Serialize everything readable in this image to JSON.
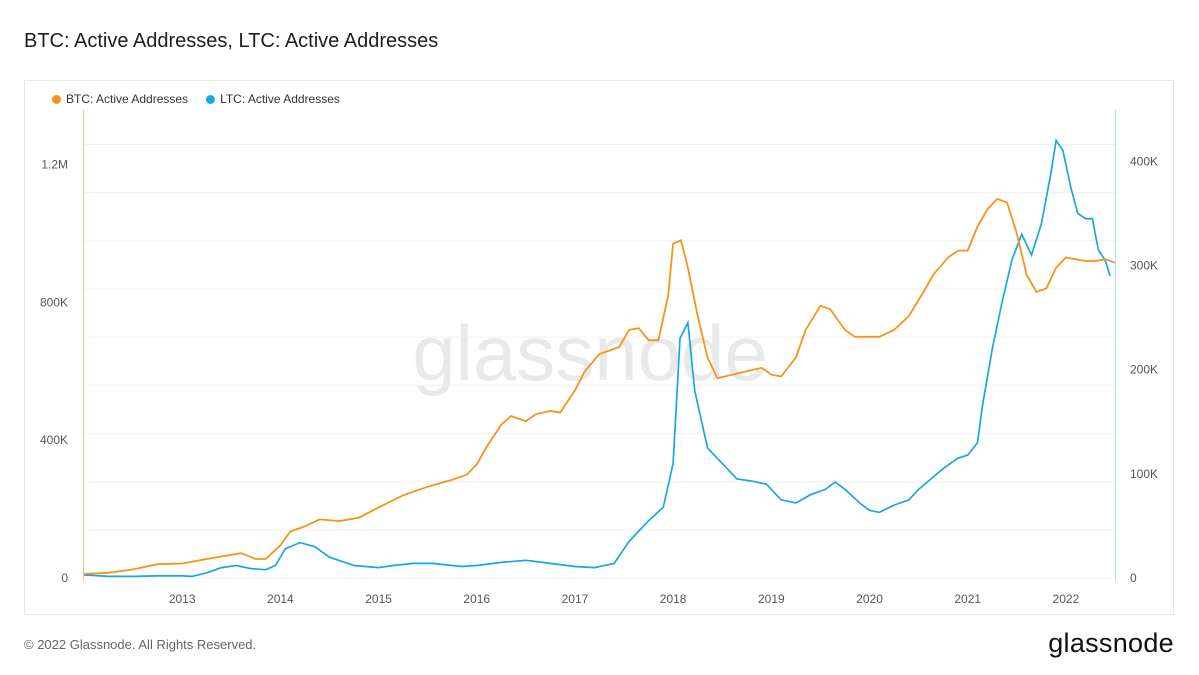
{
  "title": "BTC: Active Addresses, LTC: Active Addresses",
  "footer": "© 2022 Glassnode. All Rights Reserved.",
  "brand": "glassnode",
  "watermark": "glassnode",
  "chart_data": {
    "type": "line",
    "x_axis": {
      "ticks": [
        "2013",
        "2014",
        "2015",
        "2016",
        "2017",
        "2018",
        "2019",
        "2020",
        "2021",
        "2022"
      ],
      "range": [
        2012.0,
        2022.5
      ]
    },
    "y_left": {
      "ticks": [
        "0",
        "400K",
        "800K",
        "1.2M"
      ],
      "tick_values": [
        0,
        400000,
        800000,
        1200000
      ],
      "range": [
        0,
        1200000
      ]
    },
    "y_right": {
      "ticks": [
        "0",
        "100K",
        "200K",
        "300K",
        "400K"
      ],
      "tick_values": [
        0,
        100000,
        200000,
        300000,
        400000
      ],
      "range": [
        0,
        400000
      ]
    },
    "grid": true,
    "legend_position": "top-left",
    "series": [
      {
        "name": "BTC: Active Addresses",
        "color": "#f7931a",
        "axis": "left",
        "points": [
          [
            2012.0,
            12000
          ],
          [
            2012.25,
            15000
          ],
          [
            2012.5,
            25000
          ],
          [
            2012.75,
            40000
          ],
          [
            2013.0,
            42000
          ],
          [
            2013.25,
            55000
          ],
          [
            2013.45,
            65000
          ],
          [
            2013.6,
            72000
          ],
          [
            2013.75,
            55000
          ],
          [
            2013.85,
            55000
          ],
          [
            2014.0,
            95000
          ],
          [
            2014.1,
            135000
          ],
          [
            2014.25,
            150000
          ],
          [
            2014.4,
            170000
          ],
          [
            2014.6,
            165000
          ],
          [
            2014.8,
            175000
          ],
          [
            2015.0,
            205000
          ],
          [
            2015.25,
            240000
          ],
          [
            2015.5,
            265000
          ],
          [
            2015.75,
            285000
          ],
          [
            2015.9,
            300000
          ],
          [
            2016.0,
            330000
          ],
          [
            2016.1,
            380000
          ],
          [
            2016.25,
            445000
          ],
          [
            2016.35,
            470000
          ],
          [
            2016.5,
            455000
          ],
          [
            2016.6,
            475000
          ],
          [
            2016.75,
            485000
          ],
          [
            2016.85,
            480000
          ],
          [
            2017.0,
            545000
          ],
          [
            2017.1,
            600000
          ],
          [
            2017.25,
            650000
          ],
          [
            2017.45,
            670000
          ],
          [
            2017.55,
            720000
          ],
          [
            2017.65,
            725000
          ],
          [
            2017.75,
            690000
          ],
          [
            2017.85,
            690000
          ],
          [
            2017.95,
            820000
          ],
          [
            2018.0,
            970000
          ],
          [
            2018.08,
            980000
          ],
          [
            2018.15,
            900000
          ],
          [
            2018.25,
            760000
          ],
          [
            2018.35,
            640000
          ],
          [
            2018.45,
            580000
          ],
          [
            2018.6,
            590000
          ],
          [
            2018.75,
            600000
          ],
          [
            2018.9,
            610000
          ],
          [
            2019.0,
            590000
          ],
          [
            2019.1,
            585000
          ],
          [
            2019.25,
            640000
          ],
          [
            2019.35,
            720000
          ],
          [
            2019.5,
            790000
          ],
          [
            2019.6,
            780000
          ],
          [
            2019.75,
            720000
          ],
          [
            2019.85,
            700000
          ],
          [
            2020.0,
            700000
          ],
          [
            2020.1,
            700000
          ],
          [
            2020.25,
            720000
          ],
          [
            2020.4,
            760000
          ],
          [
            2020.55,
            830000
          ],
          [
            2020.65,
            880000
          ],
          [
            2020.8,
            930000
          ],
          [
            2020.9,
            950000
          ],
          [
            2021.0,
            950000
          ],
          [
            2021.1,
            1020000
          ],
          [
            2021.2,
            1070000
          ],
          [
            2021.3,
            1100000
          ],
          [
            2021.4,
            1090000
          ],
          [
            2021.5,
            1000000
          ],
          [
            2021.6,
            880000
          ],
          [
            2021.7,
            830000
          ],
          [
            2021.8,
            840000
          ],
          [
            2021.9,
            900000
          ],
          [
            2022.0,
            930000
          ],
          [
            2022.1,
            925000
          ],
          [
            2022.2,
            920000
          ],
          [
            2022.3,
            920000
          ],
          [
            2022.4,
            925000
          ],
          [
            2022.5,
            915000
          ]
        ]
      },
      {
        "name": "LTC: Active Addresses",
        "color": "#1aa7df",
        "axis": "right",
        "points": [
          [
            2012.0,
            3000
          ],
          [
            2012.25,
            1500
          ],
          [
            2012.5,
            1500
          ],
          [
            2012.75,
            2000
          ],
          [
            2013.0,
            2000
          ],
          [
            2013.1,
            1500
          ],
          [
            2013.25,
            5000
          ],
          [
            2013.4,
            10000
          ],
          [
            2013.55,
            12000
          ],
          [
            2013.7,
            9000
          ],
          [
            2013.85,
            8000
          ],
          [
            2013.95,
            12000
          ],
          [
            2014.05,
            28000
          ],
          [
            2014.2,
            34000
          ],
          [
            2014.35,
            30000
          ],
          [
            2014.5,
            20000
          ],
          [
            2014.75,
            12000
          ],
          [
            2015.0,
            10000
          ],
          [
            2015.15,
            12000
          ],
          [
            2015.35,
            14000
          ],
          [
            2015.55,
            14000
          ],
          [
            2015.75,
            12000
          ],
          [
            2015.85,
            11000
          ],
          [
            2016.0,
            12000
          ],
          [
            2016.25,
            15000
          ],
          [
            2016.5,
            17000
          ],
          [
            2016.75,
            14000
          ],
          [
            2017.0,
            11000
          ],
          [
            2017.2,
            10000
          ],
          [
            2017.4,
            14000
          ],
          [
            2017.55,
            35000
          ],
          [
            2017.75,
            55000
          ],
          [
            2017.9,
            68000
          ],
          [
            2018.0,
            110000
          ],
          [
            2018.07,
            230000
          ],
          [
            2018.15,
            245000
          ],
          [
            2018.22,
            180000
          ],
          [
            2018.35,
            125000
          ],
          [
            2018.5,
            110000
          ],
          [
            2018.65,
            95000
          ],
          [
            2018.8,
            93000
          ],
          [
            2018.95,
            90000
          ],
          [
            2019.1,
            75000
          ],
          [
            2019.25,
            72000
          ],
          [
            2019.4,
            80000
          ],
          [
            2019.55,
            85000
          ],
          [
            2019.65,
            92000
          ],
          [
            2019.75,
            85000
          ],
          [
            2019.9,
            72000
          ],
          [
            2020.0,
            65000
          ],
          [
            2020.1,
            63000
          ],
          [
            2020.25,
            70000
          ],
          [
            2020.4,
            75000
          ],
          [
            2020.5,
            85000
          ],
          [
            2020.6,
            93000
          ],
          [
            2020.75,
            105000
          ],
          [
            2020.9,
            115000
          ],
          [
            2021.0,
            118000
          ],
          [
            2021.1,
            130000
          ],
          [
            2021.15,
            165000
          ],
          [
            2021.25,
            220000
          ],
          [
            2021.35,
            265000
          ],
          [
            2021.45,
            305000
          ],
          [
            2021.55,
            330000
          ],
          [
            2021.65,
            310000
          ],
          [
            2021.75,
            340000
          ],
          [
            2021.85,
            390000
          ],
          [
            2021.9,
            420000
          ],
          [
            2021.97,
            410000
          ],
          [
            2022.05,
            375000
          ],
          [
            2022.12,
            350000
          ],
          [
            2022.2,
            345000
          ],
          [
            2022.27,
            345000
          ],
          [
            2022.33,
            315000
          ],
          [
            2022.4,
            305000
          ],
          [
            2022.45,
            290000
          ]
        ]
      }
    ]
  }
}
